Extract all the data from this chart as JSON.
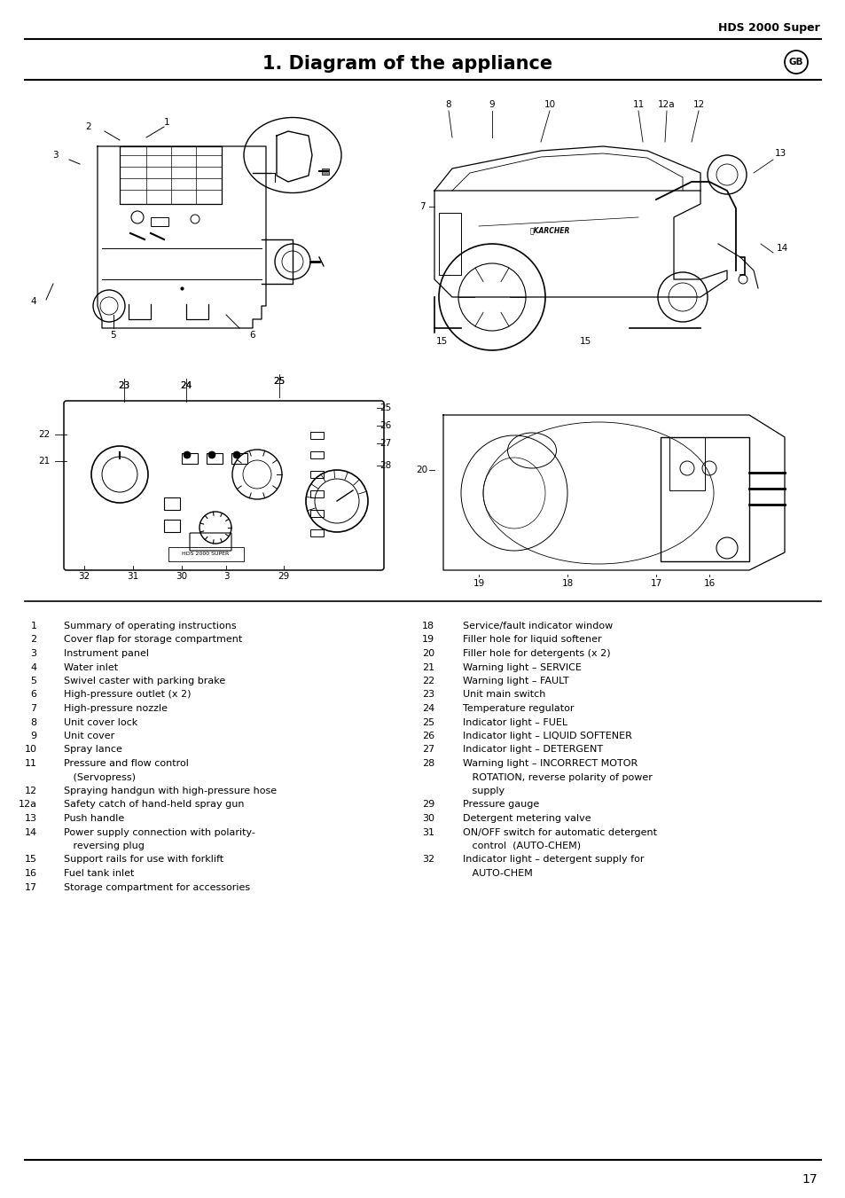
{
  "header_right": "HDS 2000 Super",
  "title": "1. Diagram of the appliance",
  "gb_label": "GB",
  "footer_page": "17",
  "bg_color": "#ffffff",
  "text_color": "#000000",
  "line_color": "#000000",
  "title_fontsize": 15,
  "header_fontsize": 9,
  "body_fontsize": 8.0,
  "left_column_items": [
    [
      "  1",
      "Summary of operating instructions"
    ],
    [
      "  2",
      "Cover flap for storage compartment"
    ],
    [
      "  3",
      "Instrument panel"
    ],
    [
      "  4",
      "Water inlet"
    ],
    [
      "  5",
      "Swivel caster with parking brake"
    ],
    [
      "  6",
      "High-pressure outlet (x 2)"
    ],
    [
      "  7",
      "High-pressure nozzle"
    ],
    [
      "  8",
      "Unit cover lock"
    ],
    [
      "  9",
      "Unit cover"
    ],
    [
      "10",
      "Spray lance"
    ],
    [
      "11",
      "Pressure and flow control"
    ],
    [
      "",
      "   (Servopress)"
    ],
    [
      "12",
      "Spraying handgun with high-pressure hose"
    ],
    [
      "12a",
      "Safety catch of hand-held spray gun"
    ],
    [
      "13",
      "Push handle"
    ],
    [
      "14",
      "Power supply connection with polarity-"
    ],
    [
      "",
      "   reversing plug"
    ],
    [
      "15",
      "Support rails for use with forklift"
    ],
    [
      "16",
      "Fuel tank inlet"
    ],
    [
      "17",
      "Storage compartment for accessories"
    ]
  ],
  "right_column_items": [
    [
      "18",
      "Service/fault indicator window"
    ],
    [
      "19",
      "Filler hole for liquid softener"
    ],
    [
      "20",
      "Filler hole for detergents (x 2)"
    ],
    [
      "21",
      "Warning light – SERVICE"
    ],
    [
      "22",
      "Warning light – FAULT"
    ],
    [
      "23",
      "Unit main switch"
    ],
    [
      "24",
      "Temperature regulator"
    ],
    [
      "25",
      "Indicator light – FUEL"
    ],
    [
      "26",
      "Indicator light – LIQUID SOFTENER"
    ],
    [
      "27",
      "Indicator light – DETERGENT"
    ],
    [
      "28",
      "Warning light – INCORRECT MOTOR"
    ],
    [
      "",
      "   ROTATION, reverse polarity of power"
    ],
    [
      "",
      "   supply"
    ],
    [
      "29",
      "Pressure gauge"
    ],
    [
      "30",
      "Detergent metering valve"
    ],
    [
      "31",
      "ON/OFF switch for automatic detergent"
    ],
    [
      "",
      "   control  (AUTO-CHEM)"
    ],
    [
      "32",
      "Indicator light – detergent supply for"
    ],
    [
      "",
      "   AUTO-CHEM"
    ]
  ]
}
